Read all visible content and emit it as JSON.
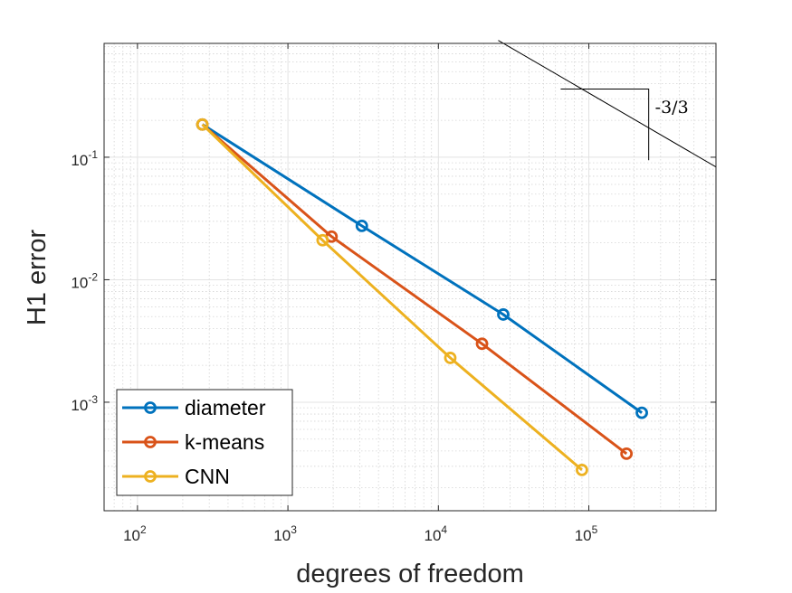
{
  "chart_data": {
    "type": "line",
    "scale": {
      "x": "log",
      "y": "log"
    },
    "xlabel": "degrees of freedom",
    "ylabel": "H1 error",
    "xlim": [
      60,
      700000
    ],
    "ylim": [
      0.00013,
      0.85
    ],
    "grid": true,
    "legend_position": "bottom-left",
    "x_ticks": [
      {
        "value": 100,
        "base": "10",
        "exp": "2"
      },
      {
        "value": 1000,
        "base": "10",
        "exp": "3"
      },
      {
        "value": 10000,
        "base": "10",
        "exp": "4"
      },
      {
        "value": 100000,
        "base": "10",
        "exp": "5"
      }
    ],
    "y_ticks": [
      {
        "value": 0.1,
        "base": "10",
        "exp": "-1"
      },
      {
        "value": 0.01,
        "base": "10",
        "exp": "-2"
      },
      {
        "value": 0.001,
        "base": "10",
        "exp": "-3"
      }
    ],
    "series": [
      {
        "name": "diameter",
        "color": "#0072BD",
        "x": [
          270,
          3100,
          27000,
          225000
        ],
        "y": [
          0.185,
          0.0275,
          0.0052,
          0.00082
        ]
      },
      {
        "name": "k-means",
        "color": "#D95319",
        "x": [
          270,
          1950,
          19500,
          178000
        ],
        "y": [
          0.185,
          0.0225,
          0.003,
          0.00038
        ]
      },
      {
        "name": "CNN",
        "color": "#EDB120",
        "x": [
          270,
          1700,
          12000,
          90000
        ],
        "y": [
          0.185,
          0.021,
          0.0023,
          0.00028
        ]
      }
    ],
    "slope_indicator": {
      "label": "-3/3",
      "x_start": 25000,
      "y_start": 0.9,
      "x_end": 700000,
      "y_end": 0.0833,
      "triangle_x": [
        65000,
        250000
      ],
      "triangle_y": [
        0.36,
        0.0945
      ]
    }
  }
}
